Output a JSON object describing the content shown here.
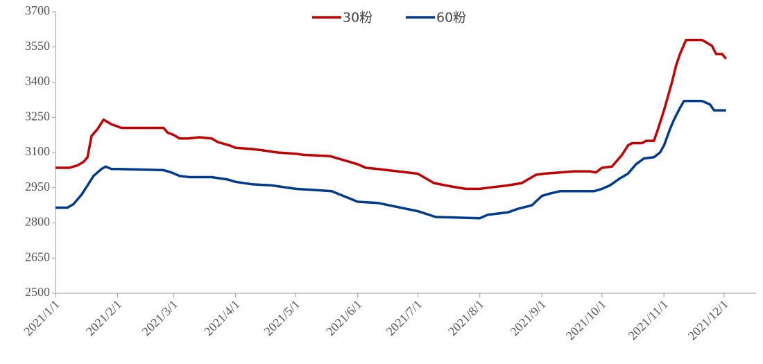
{
  "chart_data": {
    "type": "line",
    "xlim": [
      "2021-01-01",
      "2021-12-17"
    ],
    "xticks": [
      {
        "value": "2021-01-01",
        "label": "2021/1/1"
      },
      {
        "value": "2021-02-01",
        "label": "2021/2/1"
      },
      {
        "value": "2021-03-01",
        "label": "2021/3/1"
      },
      {
        "value": "2021-04-01",
        "label": "2021/4/1"
      },
      {
        "value": "2021-05-01",
        "label": "2021/5/1"
      },
      {
        "value": "2021-06-01",
        "label": "2021/6/1"
      },
      {
        "value": "2021-07-01",
        "label": "2021/7/1"
      },
      {
        "value": "2021-08-01",
        "label": "2021/8/1"
      },
      {
        "value": "2021-09-01",
        "label": "2021/9/1"
      },
      {
        "value": "2021-10-01",
        "label": "2021/10/1"
      },
      {
        "value": "2021-11-01",
        "label": "2021/11/1"
      },
      {
        "value": "2021-12-01",
        "label": "2021/12/1"
      }
    ],
    "ylim": [
      2500,
      3700
    ],
    "yticks": [
      2500,
      2650,
      2800,
      2950,
      3100,
      3250,
      3400,
      3550,
      3700
    ],
    "legend": "top",
    "series": [
      {
        "name": "30粉",
        "color": "#c00000",
        "x": [
          "2021-01-01",
          "2021-01-08",
          "2021-01-12",
          "2021-01-15",
          "2021-01-17",
          "2021-01-19",
          "2021-01-22",
          "2021-01-25",
          "2021-01-29",
          "2021-02-03",
          "2021-02-24",
          "2021-02-26",
          "2021-03-01",
          "2021-03-04",
          "2021-03-08",
          "2021-03-14",
          "2021-03-20",
          "2021-03-23",
          "2021-03-29",
          "2021-04-01",
          "2021-04-09",
          "2021-04-14",
          "2021-04-22",
          "2021-05-01",
          "2021-05-05",
          "2021-05-18",
          "2021-06-01",
          "2021-06-05",
          "2021-06-11",
          "2021-07-01",
          "2021-07-09",
          "2021-07-18",
          "2021-07-25",
          "2021-08-01",
          "2021-08-05",
          "2021-08-15",
          "2021-08-22",
          "2021-08-25",
          "2021-08-29",
          "2021-09-02",
          "2021-09-10",
          "2021-09-17",
          "2021-09-25",
          "2021-09-28",
          "2021-10-01",
          "2021-10-06",
          "2021-10-11",
          "2021-10-14",
          "2021-10-16",
          "2021-10-21",
          "2021-10-23",
          "2021-10-27",
          "2021-10-29",
          "2021-11-01",
          "2021-11-03",
          "2021-11-05",
          "2021-11-07",
          "2021-11-09",
          "2021-11-11",
          "2021-11-12",
          "2021-11-20",
          "2021-11-22",
          "2021-11-25",
          "2021-11-27",
          "2021-11-30",
          "2021-12-02"
        ],
        "values": [
          3035,
          3035,
          3045,
          3060,
          3080,
          3170,
          3200,
          3240,
          3220,
          3205,
          3205,
          3185,
          3175,
          3160,
          3160,
          3165,
          3160,
          3145,
          3130,
          3120,
          3115,
          3110,
          3100,
          3095,
          3090,
          3085,
          3050,
          3035,
          3030,
          3010,
          2970,
          2955,
          2945,
          2945,
          2950,
          2960,
          2970,
          2985,
          3005,
          3010,
          3015,
          3020,
          3020,
          3015,
          3035,
          3040,
          3090,
          3130,
          3140,
          3140,
          3150,
          3150,
          3200,
          3280,
          3340,
          3400,
          3470,
          3520,
          3560,
          3580,
          3580,
          3570,
          3555,
          3520,
          3520,
          3500
        ]
      },
      {
        "name": "60粉",
        "color": "#003a8c",
        "x": [
          "2021-01-01",
          "2021-01-07",
          "2021-01-10",
          "2021-01-14",
          "2021-01-17",
          "2021-01-20",
          "2021-01-24",
          "2021-01-26",
          "2021-01-29",
          "2021-02-01",
          "2021-02-24",
          "2021-02-28",
          "2021-03-04",
          "2021-03-09",
          "2021-03-20",
          "2021-03-28",
          "2021-04-01",
          "2021-04-09",
          "2021-04-19",
          "2021-05-01",
          "2021-05-11",
          "2021-05-19",
          "2021-06-01",
          "2021-06-11",
          "2021-07-01",
          "2021-07-10",
          "2021-08-01",
          "2021-08-05",
          "2021-08-15",
          "2021-08-20",
          "2021-08-27",
          "2021-09-01",
          "2021-09-05",
          "2021-09-10",
          "2021-09-27",
          "2021-10-01",
          "2021-10-05",
          "2021-10-10",
          "2021-10-14",
          "2021-10-18",
          "2021-10-22",
          "2021-10-27",
          "2021-10-30",
          "2021-11-01",
          "2021-11-04",
          "2021-11-06",
          "2021-11-09",
          "2021-11-11",
          "2021-11-20",
          "2021-11-24",
          "2021-11-26",
          "2021-12-02"
        ],
        "values": [
          2865,
          2865,
          2880,
          2920,
          2960,
          3000,
          3030,
          3040,
          3030,
          3030,
          3025,
          3015,
          3000,
          2995,
          2995,
          2985,
          2975,
          2965,
          2960,
          2945,
          2940,
          2935,
          2890,
          2885,
          2850,
          2825,
          2820,
          2835,
          2845,
          2860,
          2875,
          2915,
          2925,
          2935,
          2935,
          2945,
          2960,
          2990,
          3010,
          3050,
          3075,
          3080,
          3100,
          3130,
          3200,
          3240,
          3290,
          3320,
          3320,
          3305,
          3280,
          3280
        ]
      }
    ]
  }
}
